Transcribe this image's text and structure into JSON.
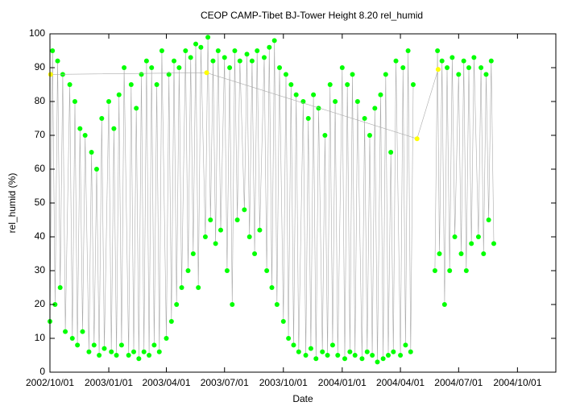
{
  "chart_data": {
    "type": "scatter",
    "title": "CEOP CAMP-Tibet BJ-Tower Height 8.20 rel_humid",
    "x_label": "Date",
    "y_label": "rel_humid (%)",
    "xlim": [
      "2002/10/01",
      "2004/11/30"
    ],
    "xticks": [
      "2002/10/01",
      "2003/01/01",
      "2003/04/01",
      "2003/07/01",
      "2003/10/01",
      "2004/01/01",
      "2004/04/01",
      "2004/07/01",
      "2004/10/01"
    ],
    "ylim": [
      0,
      100
    ],
    "yticks": [
      0,
      10,
      20,
      30,
      40,
      50,
      60,
      70,
      80,
      90,
      100
    ],
    "grid": false,
    "connect_points": true,
    "line_color": "#aaaaaa",
    "series": [
      {
        "color": "#00ff00",
        "x": [
          "2002/10/01",
          "2002/10/05",
          "2002/10/09",
          "2002/10/13",
          "2002/10/17",
          "2002/10/21",
          "2002/10/25",
          "2002/11/01",
          "2002/11/05",
          "2002/11/09",
          "2002/11/13",
          "2002/11/17",
          "2002/11/21",
          "2002/11/25",
          "2002/12/01",
          "2002/12/05",
          "2002/12/09",
          "2002/12/13",
          "2002/12/17",
          "2002/12/21",
          "2002/12/25",
          "2003/01/01",
          "2003/01/05",
          "2003/01/09",
          "2003/01/13",
          "2003/01/17",
          "2003/01/21",
          "2003/01/25",
          "2003/02/01",
          "2003/02/05",
          "2003/02/09",
          "2003/02/13",
          "2003/02/17",
          "2003/02/21",
          "2003/02/25",
          "2003/03/01",
          "2003/03/05",
          "2003/03/09",
          "2003/03/13",
          "2003/03/17",
          "2003/03/21",
          "2003/03/25",
          "2003/04/01",
          "2003/04/05",
          "2003/04/09",
          "2003/04/13",
          "2003/04/17",
          "2003/04/21",
          "2003/04/25",
          "2003/05/01",
          "2003/05/05",
          "2003/05/09",
          "2003/05/13",
          "2003/05/17",
          "2003/05/21",
          "2003/05/25",
          "2003/06/01",
          "2003/06/05",
          "2003/06/09",
          "2003/06/13",
          "2003/06/17",
          "2003/06/21",
          "2003/06/25",
          "2003/07/01",
          "2003/07/05",
          "2003/07/09",
          "2003/07/13",
          "2003/07/17",
          "2003/07/21",
          "2003/07/25",
          "2003/08/01",
          "2003/08/05",
          "2003/08/09",
          "2003/08/13",
          "2003/08/17",
          "2003/08/21",
          "2003/08/25",
          "2003/09/01",
          "2003/09/05",
          "2003/09/09",
          "2003/09/13",
          "2003/09/17",
          "2003/09/21",
          "2003/09/25",
          "2003/10/01",
          "2003/10/05",
          "2003/10/09",
          "2003/10/13",
          "2003/10/17",
          "2003/10/21",
          "2003/10/25",
          "2003/11/01",
          "2003/11/05",
          "2003/11/09",
          "2003/11/13",
          "2003/11/17",
          "2003/11/21",
          "2003/11/25",
          "2003/12/01",
          "2003/12/05",
          "2003/12/09",
          "2003/12/13",
          "2003/12/17",
          "2003/12/21",
          "2003/12/25",
          "2004/01/01",
          "2004/01/05",
          "2004/01/09",
          "2004/01/13",
          "2004/01/17",
          "2004/01/21",
          "2004/01/25",
          "2004/02/01",
          "2004/02/05",
          "2004/02/09",
          "2004/02/13",
          "2004/02/17",
          "2004/02/21",
          "2004/02/25",
          "2004/03/01",
          "2004/03/05",
          "2004/03/09",
          "2004/03/13",
          "2004/03/17",
          "2004/03/21",
          "2004/03/25",
          "2004/04/01",
          "2004/04/05",
          "2004/04/09",
          "2004/04/13",
          "2004/04/17",
          "2004/04/21",
          "2004/05/01",
          "2004/05/25",
          "2004/05/29",
          "2004/06/01",
          "2004/06/05",
          "2004/06/09",
          "2004/06/13",
          "2004/06/17",
          "2004/06/21",
          "2004/06/25",
          "2004/07/01",
          "2004/07/05",
          "2004/07/09",
          "2004/07/13",
          "2004/07/17",
          "2004/07/21",
          "2004/07/25",
          "2004/08/01",
          "2004/08/05",
          "2004/08/09",
          "2004/08/13",
          "2004/08/17",
          "2004/08/21",
          "2004/08/25"
        ],
        "values": [
          15,
          95,
          20,
          92,
          25,
          88,
          12,
          85,
          10,
          80,
          8,
          72,
          12,
          70,
          6,
          65,
          8,
          60,
          5,
          75,
          7,
          80,
          6,
          72,
          5,
          82,
          8,
          90,
          5,
          85,
          6,
          78,
          4,
          88,
          6,
          92,
          5,
          90,
          8,
          85,
          6,
          95,
          10,
          88,
          15,
          92,
          20,
          90,
          25,
          95,
          30,
          93,
          35,
          97,
          25,
          96,
          40,
          99,
          45,
          92,
          38,
          95,
          42,
          93,
          30,
          90,
          20,
          95,
          45,
          92,
          48,
          94,
          40,
          92,
          35,
          95,
          42,
          93,
          30,
          96,
          25,
          98,
          20,
          90,
          15,
          88,
          10,
          85,
          8,
          82,
          6,
          80,
          5,
          75,
          7,
          82,
          4,
          78,
          6,
          70,
          5,
          85,
          8,
          80,
          5,
          90,
          4,
          85,
          6,
          88,
          5,
          80,
          4,
          75,
          6,
          70,
          5,
          78,
          3,
          82,
          4,
          88,
          5,
          65,
          6,
          92,
          5,
          90,
          8,
          95,
          6,
          85,
          null,
          30,
          95,
          35,
          92,
          20,
          90,
          30,
          93,
          40,
          88,
          35,
          92,
          30,
          90,
          38,
          93,
          40,
          90,
          35,
          88,
          45,
          92,
          38
        ]
      },
      {
        "color": "#ffff00",
        "x": [
          "2002/10/02",
          "2003/06/03",
          "2004/04/27",
          "2004/05/30"
        ],
        "values": [
          88,
          88.5,
          69,
          89.5
        ]
      }
    ]
  }
}
